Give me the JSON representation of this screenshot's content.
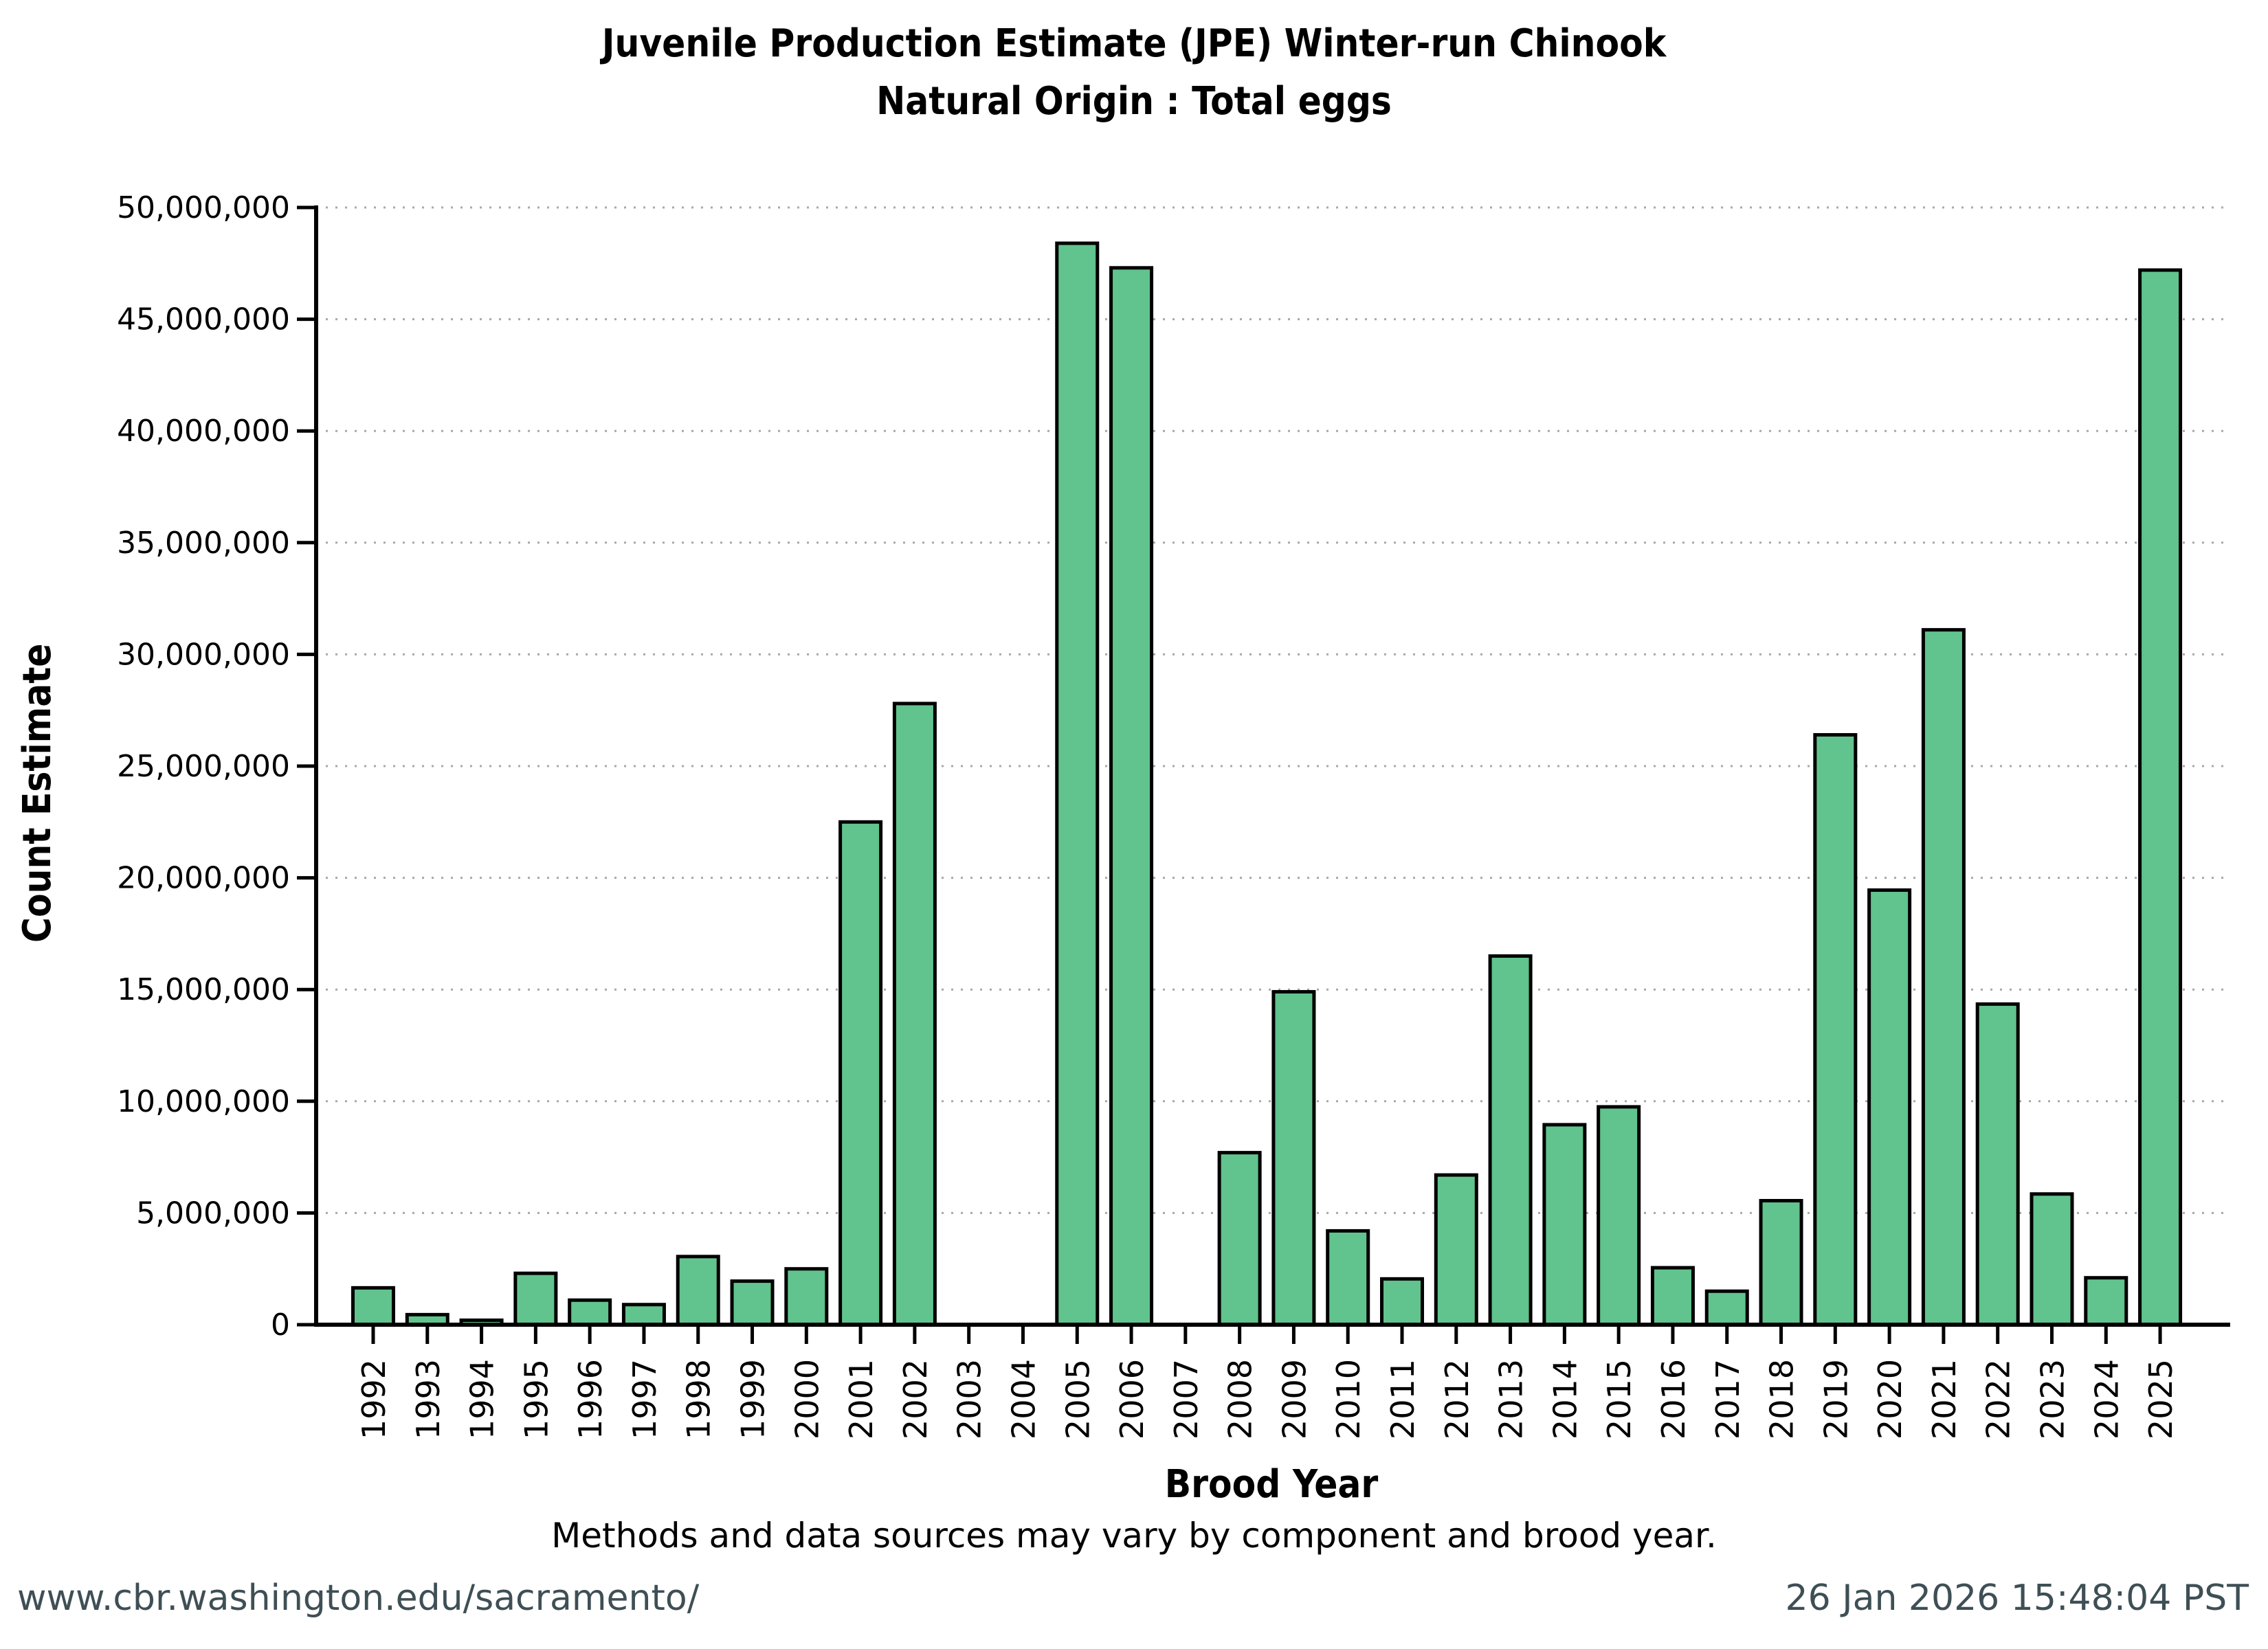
{
  "title": {
    "line1": "Juvenile Production Estimate (JPE) Winter-run Chinook",
    "line2": "Natural Origin : Total eggs"
  },
  "note": "Methods and data sources may vary by component and brood year.",
  "footer": {
    "url": "www.cbr.washington.edu/sacramento/",
    "timestamp": "26 Jan 2026 15:48:04 PST"
  },
  "chart_data": {
    "type": "bar",
    "title": "Juvenile Production Estimate (JPE) Winter-run Chinook — Natural Origin : Total eggs",
    "xlabel": "Brood Year",
    "ylabel": "Count Estimate",
    "categories": [
      "1992",
      "1993",
      "1994",
      "1995",
      "1996",
      "1997",
      "1998",
      "1999",
      "2000",
      "2001",
      "2002",
      "2003",
      "2004",
      "2005",
      "2006",
      "2007",
      "2008",
      "2009",
      "2010",
      "2011",
      "2012",
      "2013",
      "2014",
      "2015",
      "2016",
      "2017",
      "2018",
      "2019",
      "2020",
      "2021",
      "2022",
      "2023",
      "2024",
      "2025"
    ],
    "values": [
      1650000,
      450000,
      200000,
      2300000,
      1100000,
      900000,
      3050000,
      1950000,
      2500000,
      22500000,
      27800000,
      0,
      0,
      48400000,
      47300000,
      0,
      7700000,
      14900000,
      4200000,
      2050000,
      6700000,
      16500000,
      8950000,
      9750000,
      2550000,
      1500000,
      5550000,
      26400000,
      19450000,
      31100000,
      14350000,
      5850000,
      2100000,
      47200000
    ],
    "ylim": [
      0,
      50000000
    ],
    "ytick_step": 5000000,
    "y_tick_labels": [
      "0",
      "5,000,000",
      "10,000,000",
      "15,000,000",
      "20,000,000",
      "25,000,000",
      "30,000,000",
      "35,000,000",
      "40,000,000",
      "45,000,000",
      "50,000,000"
    ],
    "grid": "dotted horizontal gridlines at each y tick",
    "legend": "none",
    "bar_color": "#61c38d",
    "bar_edge_color": "#000000",
    "axis_color": "#000000",
    "grid_color": "#a8a8a8",
    "footer_color": "#3e4f55",
    "background": "#ffffff"
  }
}
